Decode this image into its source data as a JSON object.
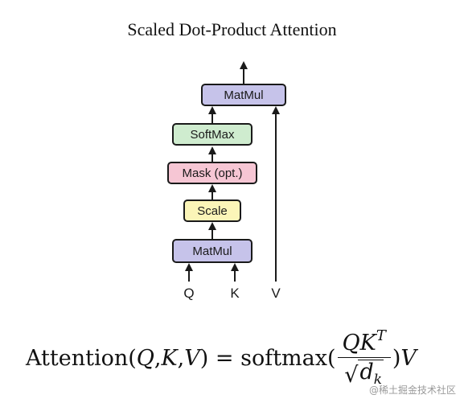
{
  "title": "Scaled Dot-Product Attention",
  "blocks": {
    "matmul_top": {
      "label": "MatMul",
      "color": "#c6c3ea"
    },
    "softmax": {
      "label": "SoftMax",
      "color": "#cfeccf"
    },
    "mask": {
      "label": "Mask (opt.)",
      "color": "#f6c6d4"
    },
    "scale": {
      "label": "Scale",
      "color": "#fbf5b8"
    },
    "matmul_bottom": {
      "label": "MatMul",
      "color": "#c6c3ea"
    }
  },
  "inputs": {
    "q": "Q",
    "k": "K",
    "v": "V"
  },
  "formula": {
    "lhs": "Attention(",
    "q": "Q",
    "comma1": ", ",
    "k": "K",
    "comma2": ", ",
    "v": "V",
    "close_eq": ") = softmax(",
    "num_q": "Q",
    "num_k": "K",
    "num_t": "T",
    "sqrt_symbol": "√",
    "den_d": "d",
    "den_k": "k",
    "close": ")",
    "trail_v": "V"
  },
  "watermark": "@稀土掘金技术社区"
}
